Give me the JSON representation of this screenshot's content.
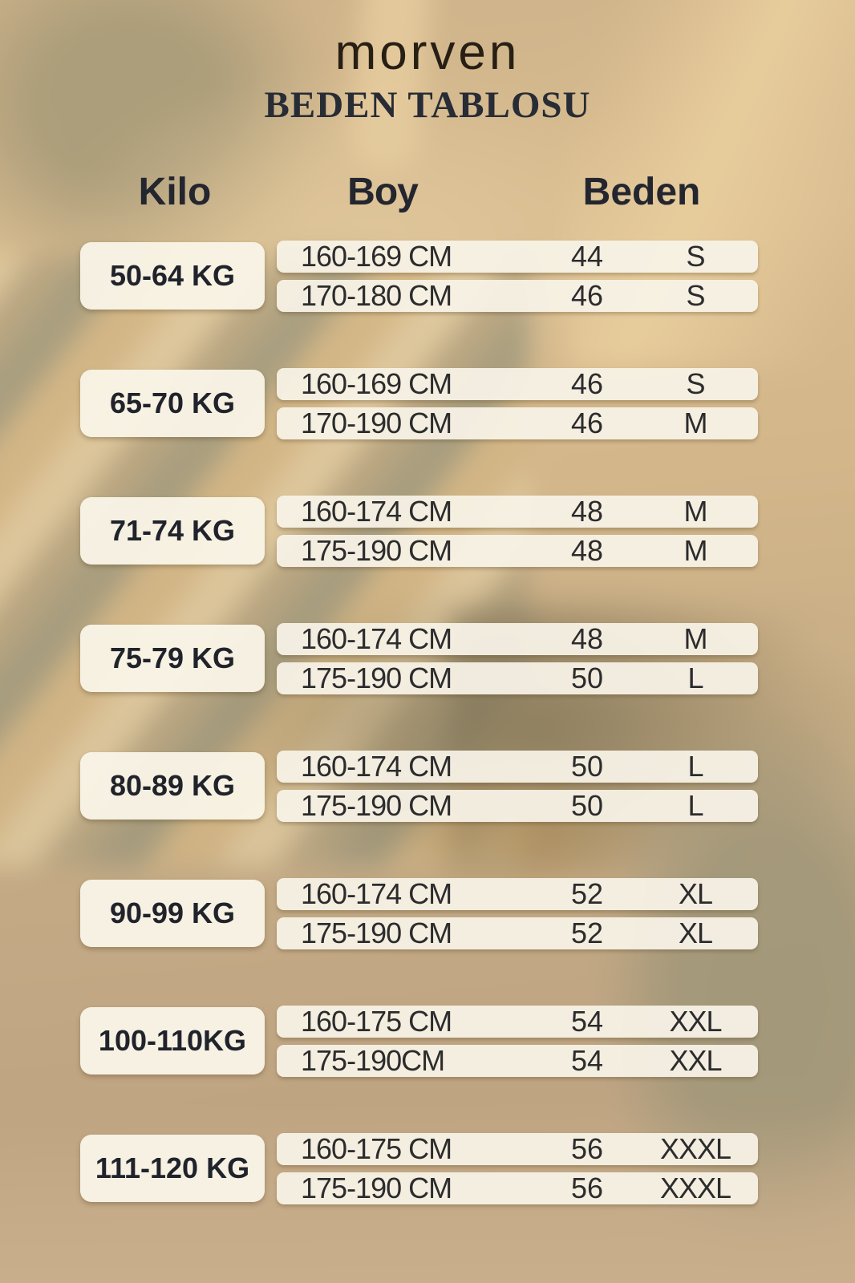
{
  "chart_data": {
    "type": "table",
    "brand": "morven",
    "title": "BEDEN TABLOSU",
    "columns": [
      "Kilo",
      "Boy",
      "Beden"
    ],
    "groups": [
      {
        "kilo": "50-64 KG",
        "rows": [
          {
            "boy": "160-169 CM",
            "num": "44",
            "size": "S"
          },
          {
            "boy": "170-180 CM",
            "num": "46",
            "size": "S"
          }
        ]
      },
      {
        "kilo": "65-70 KG",
        "rows": [
          {
            "boy": "160-169 CM",
            "num": "46",
            "size": "S"
          },
          {
            "boy": "170-190 CM",
            "num": "46",
            "size": "M"
          }
        ]
      },
      {
        "kilo": "71-74 KG",
        "rows": [
          {
            "boy": "160-174 CM",
            "num": "48",
            "size": "M"
          },
          {
            "boy": "175-190 CM",
            "num": "48",
            "size": "M"
          }
        ]
      },
      {
        "kilo": "75-79 KG",
        "rows": [
          {
            "boy": "160-174 CM",
            "num": "48",
            "size": "M"
          },
          {
            "boy": "175-190 CM",
            "num": "50",
            "size": "L"
          }
        ]
      },
      {
        "kilo": "80-89 KG",
        "rows": [
          {
            "boy": "160-174 CM",
            "num": "50",
            "size": "L"
          },
          {
            "boy": "175-190 CM",
            "num": "50",
            "size": "L"
          }
        ]
      },
      {
        "kilo": "90-99 KG",
        "rows": [
          {
            "boy": "160-174 CM",
            "num": "52",
            "size": "XL"
          },
          {
            "boy": "175-190 CM",
            "num": "52",
            "size": "XL"
          }
        ]
      },
      {
        "kilo": "100-110KG",
        "rows": [
          {
            "boy": "160-175 CM",
            "num": "54",
            "size": "XXL"
          },
          {
            "boy": "175-190CM",
            "num": "54",
            "size": "XXL"
          }
        ]
      },
      {
        "kilo": "111-120 KG",
        "rows": [
          {
            "boy": "160-175 CM",
            "num": "56",
            "size": "XXXL"
          },
          {
            "boy": "175-190 CM",
            "num": "56",
            "size": "XXXL"
          }
        ]
      }
    ]
  },
  "colors": {
    "background_tan": "#c9ae86",
    "stripe_olive": "#9d977b",
    "stripe_cream": "#e0caa0",
    "card_cream": "#f8f3e7",
    "text_dark": "#23262f",
    "brand_dark": "#271f14"
  }
}
